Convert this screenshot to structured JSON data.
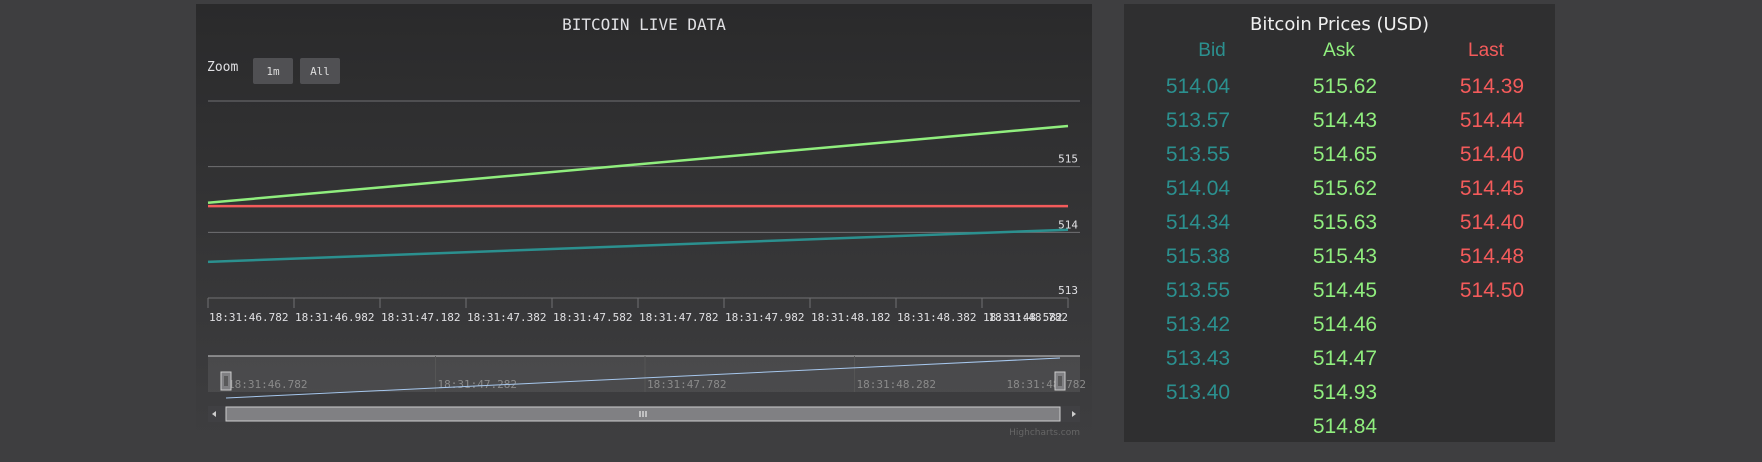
{
  "chart": {
    "title": "BITCOIN LIVE DATA",
    "zoom_label": "Zoom",
    "zoom_buttons": [
      "1m",
      "All"
    ],
    "credits": "Highcharts.com",
    "colors": {
      "ask": "#90ee7e",
      "last": "#f45b5b",
      "bid": "#2b908f",
      "navigator": "#a6c7ed"
    },
    "x_ticks": [
      "18:31:46.782",
      "18:31:46.982",
      "18:31:47.182",
      "18:31:47.382",
      "18:31:47.582",
      "18:31:47.782",
      "18:31:47.982",
      "18:31:48.182",
      "18:31:48.382",
      "18:31:48.582",
      "18:31:48.782"
    ],
    "y_ticks": [
      "515",
      "514",
      "513"
    ],
    "navigator_ticks": [
      "18:31:46.782",
      "18:31:47.282",
      "18:31:47.782",
      "18:31:48.282",
      "18:31:48.782"
    ]
  },
  "chart_data": {
    "type": "line",
    "title": "BITCOIN LIVE DATA",
    "x": [
      "18:31:46.782",
      "18:31:48.782"
    ],
    "ylim": [
      513,
      516
    ],
    "grid": true,
    "series": [
      {
        "name": "Ask",
        "values": [
          514.45,
          515.62
        ]
      },
      {
        "name": "Last",
        "values": [
          514.4,
          514.4
        ]
      },
      {
        "name": "Bid",
        "values": [
          513.55,
          514.04
        ]
      }
    ]
  },
  "prices": {
    "title": "Bitcoin Prices (USD)",
    "headers": {
      "bid": "Bid",
      "ask": "Ask",
      "last": "Last"
    },
    "bid": [
      "514.04",
      "513.57",
      "513.55",
      "514.04",
      "514.34",
      "515.38",
      "513.55",
      "513.42",
      "513.43",
      "513.40"
    ],
    "ask": [
      "515.62",
      "514.43",
      "514.65",
      "515.62",
      "515.63",
      "515.43",
      "514.45",
      "514.46",
      "514.47",
      "514.93",
      "514.84"
    ],
    "last": [
      "514.39",
      "514.44",
      "514.40",
      "514.45",
      "514.40",
      "514.48",
      "514.50"
    ],
    "colors": {
      "bid": "#2b908f",
      "ask": "#90ee7e",
      "last": "#f45b5b"
    }
  }
}
